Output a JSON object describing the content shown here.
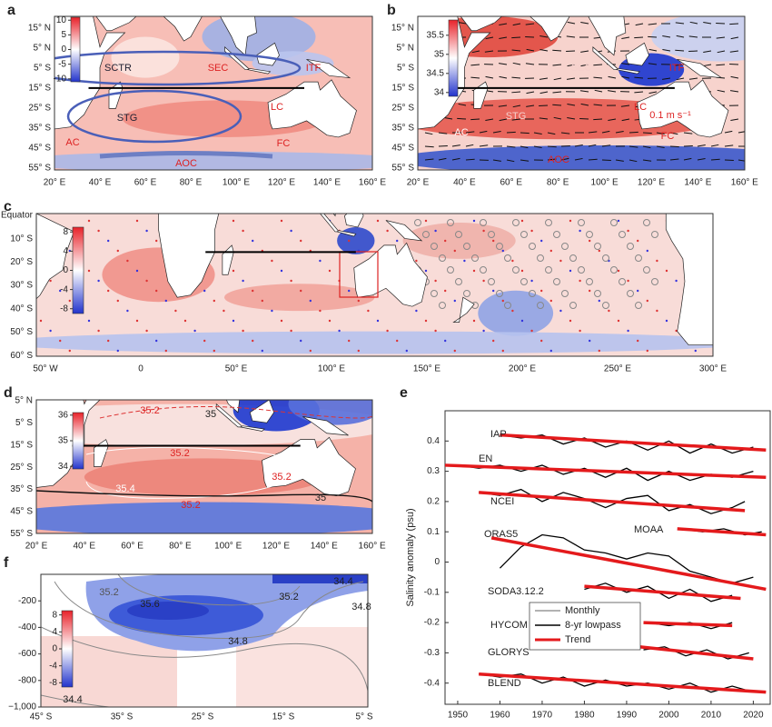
{
  "chart_data": [
    {
      "type": "map",
      "label": "a",
      "lat_labels": [
        "15° N",
        "5° N",
        "5° S",
        "15° S",
        "25° S",
        "35° S",
        "45° S",
        "55° S"
      ],
      "lon_labels": [
        "20° E",
        "40° E",
        "60° E",
        "80° E",
        "100° E",
        "120° E",
        "140° E",
        "160° E"
      ],
      "colorbar": {
        "clim": [
          -11,
          11
        ],
        "ticks": [
          10,
          5,
          0,
          -5,
          -10
        ]
      },
      "annotations": [
        "SCTR",
        "SEC",
        "ITF",
        "STG",
        "LC",
        "AC",
        "FC",
        "AOC"
      ]
    },
    {
      "type": "map",
      "label": "b",
      "lat_labels": [
        "15° N",
        "5° N",
        "5° S",
        "15° S",
        "25° S",
        "35° S",
        "45° S",
        "55° S"
      ],
      "lon_labels": [
        "20° E",
        "40° E",
        "60° E",
        "80° E",
        "100° E",
        "120° E",
        "140° E",
        "160° E"
      ],
      "colorbar": {
        "clim": [
          33.9,
          35.9
        ],
        "ticks": [
          35.5,
          35,
          34.5,
          34
        ]
      },
      "annotations": [
        "SEC",
        "ITF",
        "STG",
        "LC",
        "AC",
        "FC",
        "AOC",
        "0.1 m s⁻¹"
      ]
    },
    {
      "type": "map",
      "label": "c",
      "lat_labels": [
        "Equator",
        "10° S",
        "20° S",
        "30° S",
        "40° S",
        "50° S",
        "60° S"
      ],
      "lon_labels": [
        "50° W",
        "0",
        "50° E",
        "100° E",
        "150° E",
        "200° E",
        "250° E",
        "300° E"
      ],
      "colorbar": {
        "clim": [
          -9,
          9
        ],
        "ticks": [
          8,
          4,
          0,
          -4,
          -8
        ]
      }
    },
    {
      "type": "map",
      "label": "d",
      "lat_labels": [
        "5° N",
        "5° S",
        "15° S",
        "25° S",
        "35° S",
        "45° S",
        "55° S"
      ],
      "lon_labels": [
        "20° E",
        "40° E",
        "60° E",
        "80° E",
        "100° E",
        "120° E",
        "140° E",
        "160° E"
      ],
      "colorbar": {
        "clim": [
          33.9,
          36.1
        ],
        "ticks": [
          36,
          35,
          34
        ]
      },
      "annotations": [
        "35.2",
        "35",
        "35.2",
        "35.2",
        "35.4",
        "35",
        "35.2"
      ]
    },
    {
      "type": "section",
      "label": "f",
      "ylim": [
        -1000,
        0
      ],
      "yticks": [
        -200,
        -400,
        -600,
        -800,
        {
          "value": -1000,
          "label": "−1,000"
        }
      ],
      "x_labels": [
        "45° S",
        "35° S",
        "25° S",
        "15° S",
        "5° S"
      ],
      "colorbar": {
        "clim": [
          -9,
          9
        ],
        "ticks": [
          8,
          4,
          0,
          -4,
          -8
        ]
      },
      "annotations": [
        "35.2",
        "35.6",
        "35.2",
        "34.4",
        "34.8",
        "34.8",
        "34.4"
      ]
    },
    {
      "type": "line",
      "label": "e",
      "ylabel": "Salinity anomaly (psu)",
      "xlim": [
        1947,
        2024
      ],
      "ylim": [
        -0.47,
        0.5
      ],
      "xticks": [
        1950,
        1960,
        1970,
        1980,
        1990,
        2000,
        2010,
        2020
      ],
      "yticks": [
        -0.4,
        -0.3,
        -0.2,
        -0.1,
        0,
        0.1,
        0.2,
        0.3,
        0.4
      ],
      "legend": [
        {
          "name": "Monthly",
          "color": "#999999"
        },
        {
          "name": "8-yr lowpass",
          "color": "#000000"
        },
        {
          "name": "Trend",
          "color": "#e41a1c"
        }
      ],
      "series": [
        {
          "name": "IAP",
          "trend": {
            "x": [
              1960,
              2023
            ],
            "values": [
              0.42,
              0.37
            ]
          },
          "lowpass": {
            "x": [
              1960,
              1965,
              1970,
              1975,
              1980,
              1985,
              1990,
              1995,
              2000,
              2005,
              2010,
              2015,
              2020
            ],
            "values": [
              0.42,
              0.41,
              0.42,
              0.39,
              0.41,
              0.38,
              0.4,
              0.37,
              0.4,
              0.36,
              0.39,
              0.36,
              0.38
            ]
          }
        },
        {
          "name": "EN",
          "trend": {
            "x": [
              1947,
              2023
            ],
            "values": [
              0.32,
              0.28
            ]
          },
          "lowpass": {
            "x": [
              1950,
              1955,
              1960,
              1965,
              1970,
              1975,
              1980,
              1985,
              1990,
              1995,
              2000,
              2005,
              2010,
              2015,
              2020
            ],
            "values": [
              0.32,
              0.31,
              0.32,
              0.3,
              0.32,
              0.29,
              0.31,
              0.28,
              0.31,
              0.27,
              0.3,
              0.27,
              0.29,
              0.28,
              0.3
            ]
          }
        },
        {
          "name": "NCEI",
          "trend": {
            "x": [
              1955,
              2018
            ],
            "values": [
              0.23,
              0.17
            ]
          },
          "lowpass": {
            "x": [
              1955,
              1960,
              1965,
              1970,
              1975,
              1980,
              1985,
              1990,
              1995,
              2000,
              2005,
              2010,
              2015,
              2018
            ],
            "values": [
              0.23,
              0.22,
              0.24,
              0.2,
              0.23,
              0.21,
              0.18,
              0.21,
              0.22,
              0.17,
              0.19,
              0.16,
              0.18,
              0.2
            ]
          }
        },
        {
          "name": "MOAA",
          "trend": {
            "x": [
              2002,
              2023
            ],
            "values": [
              0.11,
              0.09
            ]
          },
          "lowpass": {
            "x": [
              2003,
              2008,
              2013,
              2018,
              2022
            ],
            "values": [
              0.11,
              0.1,
              0.11,
              0.09,
              0.1
            ]
          }
        },
        {
          "name": "ORAS5",
          "trend": {
            "x": [
              1958,
              2023
            ],
            "values": [
              0.08,
              -0.09
            ]
          },
          "lowpass": {
            "x": [
              1960,
              1965,
              1970,
              1975,
              1980,
              1985,
              1990,
              1995,
              2000,
              2005,
              2010,
              2015,
              2020
            ],
            "values": [
              -0.02,
              0.05,
              0.09,
              0.08,
              0.04,
              0.03,
              0.01,
              0.03,
              0.02,
              -0.03,
              -0.05,
              -0.07,
              -0.05
            ]
          }
        },
        {
          "name": "SODA3.12.2",
          "trend": {
            "x": [
              1980,
              2017
            ],
            "values": [
              -0.08,
              -0.12
            ]
          },
          "lowpass": {
            "x": [
              1980,
              1985,
              1990,
              1995,
              2000,
              2005,
              2010,
              2015
            ],
            "values": [
              -0.09,
              -0.07,
              -0.1,
              -0.08,
              -0.12,
              -0.09,
              -0.13,
              -0.11
            ]
          }
        },
        {
          "name": "HYCOM",
          "trend": {
            "x": [
              1994,
              2015
            ],
            "values": [
              -0.2,
              -0.21
            ]
          },
          "lowpass": {
            "x": [
              1995,
              2000,
              2005,
              2010,
              2015
            ],
            "values": [
              -0.2,
              -0.21,
              -0.2,
              -0.22,
              -0.2
            ]
          }
        },
        {
          "name": "GLORYS",
          "trend": {
            "x": [
              1993,
              2020
            ],
            "values": [
              -0.28,
              -0.32
            ]
          },
          "lowpass": {
            "x": [
              1994,
              1999,
              2004,
              2009,
              2014,
              2019
            ],
            "values": [
              -0.29,
              -0.28,
              -0.31,
              -0.29,
              -0.32,
              -0.3
            ]
          }
        },
        {
          "name": "BLEND",
          "trend": {
            "x": [
              1955,
              2023
            ],
            "values": [
              -0.37,
              -0.43
            ]
          },
          "lowpass": {
            "x": [
              1955,
              1960,
              1965,
              1970,
              1975,
              1980,
              1985,
              1990,
              1995,
              2000,
              2005,
              2010,
              2015,
              2020
            ],
            "values": [
              -0.37,
              -0.38,
              -0.37,
              -0.4,
              -0.38,
              -0.41,
              -0.39,
              -0.41,
              -0.4,
              -0.42,
              -0.4,
              -0.43,
              -0.41,
              -0.43
            ]
          }
        }
      ]
    }
  ]
}
